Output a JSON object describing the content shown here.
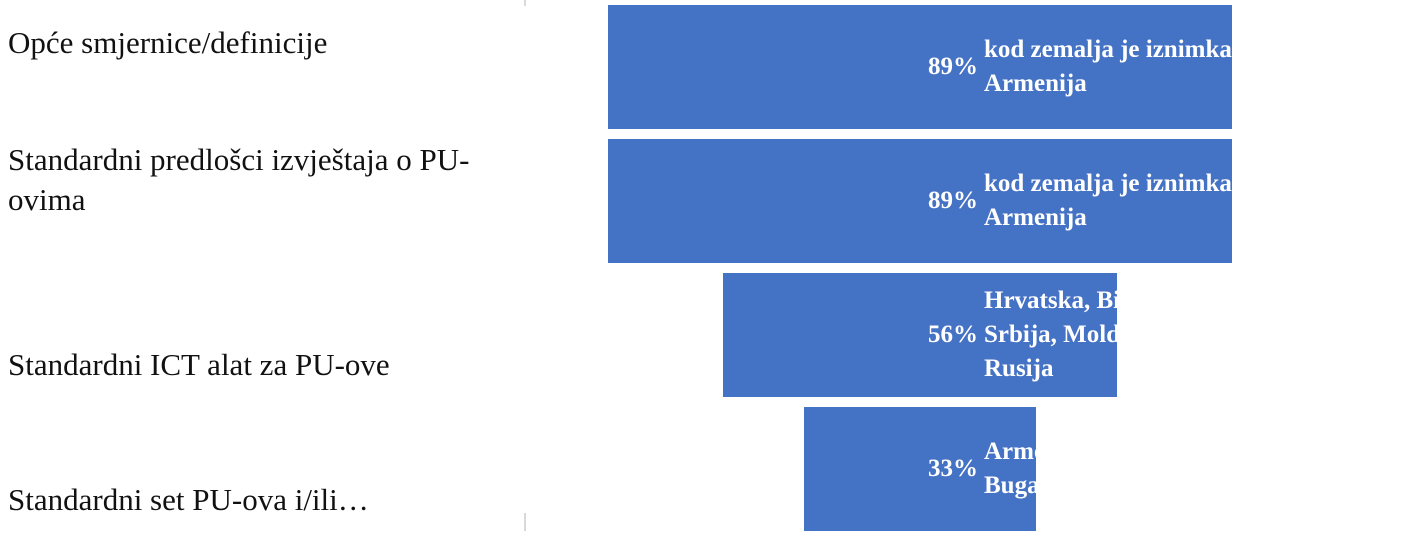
{
  "chart_data": {
    "type": "bar",
    "orientation": "horizontal",
    "layout": "centered-funnel",
    "bar_color": "#4472c4",
    "value_unit": "%",
    "xlim": [
      0,
      100
    ],
    "categories": [
      "Opće smjernice/definicije",
      "Standardni predlošci izvještaja o PU-ovima",
      "Standardni ICT alat za PU-ove",
      "Standardni set PU-ova i/ili…"
    ],
    "values": [
      89,
      89,
      56,
      33
    ],
    "data_labels": [
      "89%",
      "89%",
      "56%",
      "33%"
    ],
    "annotations": [
      "kod zemalja je iznimka Armenija",
      "kod zemalja je iznimka Armenija",
      "Hrvatska, BiH, Srbija, Moldova i Rusija",
      "Armenija, Bugarska, Rusija"
    ]
  }
}
